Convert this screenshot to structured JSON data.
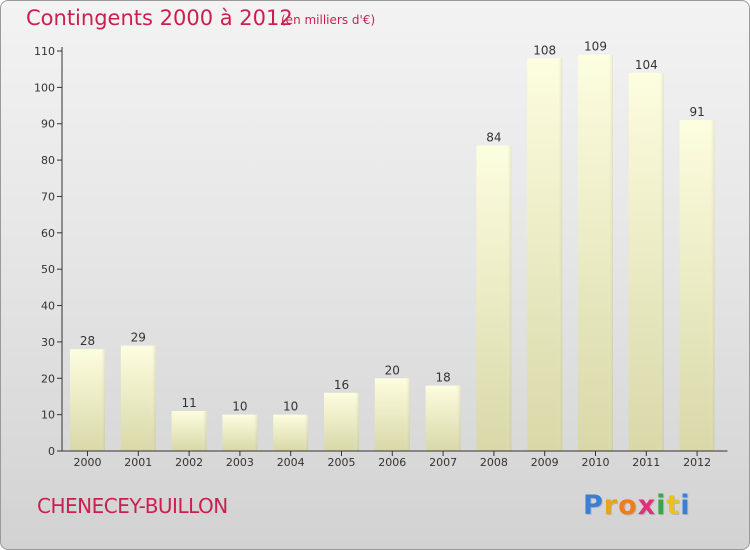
{
  "title": "Contingents 2000 à 2012",
  "subtitle": "(en milliers d'€)",
  "commune": "CHENECEY-BUILLON",
  "logo": {
    "letters": [
      "P",
      "r",
      "o",
      "x",
      "i",
      "t",
      "i"
    ],
    "colors": [
      "#3a7fd5",
      "#e8a21b",
      "#f07c1c",
      "#e0307a",
      "#3aa64a",
      "#e8c31b",
      "#3a7fd5"
    ]
  },
  "colors": {
    "accent": "#cc1f4f",
    "bar_top": "#fdfde0",
    "bar_bottom": "#d8d8a8",
    "axis": "#333333"
  },
  "chart_data": {
    "type": "bar",
    "title": "Contingents 2000 à 2012",
    "subtitle": "(en milliers d'€)",
    "categories": [
      "2000",
      "2001",
      "2002",
      "2003",
      "2004",
      "2005",
      "2006",
      "2007",
      "2008",
      "2009",
      "2010",
      "2011",
      "2012"
    ],
    "values": [
      28,
      29,
      11,
      10,
      10,
      16,
      20,
      18,
      84,
      108,
      109,
      104,
      91
    ],
    "ylim": [
      0,
      110
    ],
    "yticks": [
      0,
      10,
      20,
      30,
      40,
      50,
      60,
      70,
      80,
      90,
      100,
      110
    ],
    "grid": false,
    "xlabel": "",
    "ylabel": ""
  }
}
